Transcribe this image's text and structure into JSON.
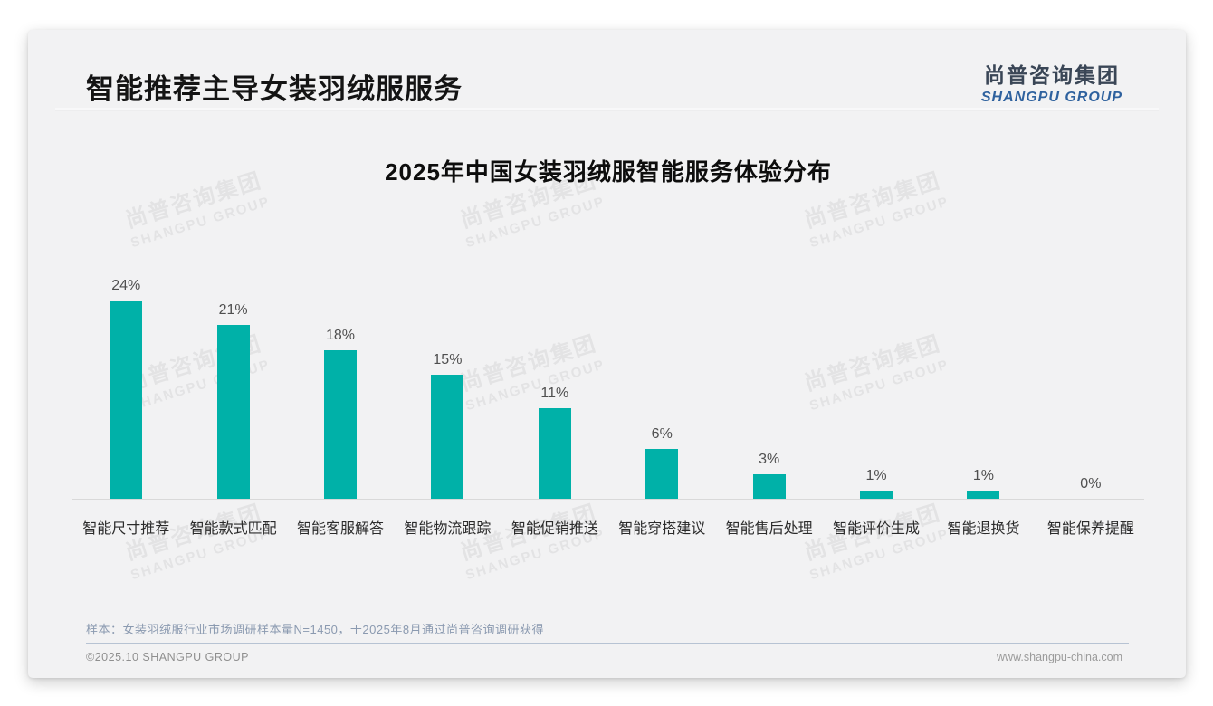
{
  "page": {
    "header": {
      "title": "智能推荐主导女装羽绒服服务",
      "logo": {
        "cn": "尚普咨询集团",
        "en": "SHANGPU GROUP"
      }
    },
    "watermark": {
      "cn": "尚普咨询集团",
      "en": "SHANGPU GROUP"
    },
    "note": "样本：女装羽绒服行业市场调研样本量N=1450，于2025年8月通过尚普咨询调研获得",
    "footer": {
      "left": "©2025.10 SHANGPU GROUP",
      "right": "www.shangpu-china.com"
    },
    "colors": {
      "bar_teal": "#00b1a8",
      "logo_blue": "#2e619e",
      "note_gray_blue": "#8b9ab0",
      "card_background": "#f2f2f3"
    }
  },
  "chart_data": {
    "type": "bar",
    "title": "2025年中国女装羽绒服智能服务体验分布",
    "categories": [
      "智能尺寸推荐",
      "智能款式匹配",
      "智能客服解答",
      "智能物流跟踪",
      "智能促销推送",
      "智能穿搭建议",
      "智能售后处理",
      "智能评价生成",
      "智能退换货",
      "智能保养提醒"
    ],
    "values": [
      24,
      21,
      18,
      15,
      11,
      6,
      3,
      1,
      1,
      0
    ],
    "unit": "%",
    "value_labels": true,
    "xlabel": "",
    "ylabel": "",
    "ylim": [
      0,
      26
    ],
    "grid": false,
    "legend": "none",
    "bar_color": "#00b1a8"
  }
}
